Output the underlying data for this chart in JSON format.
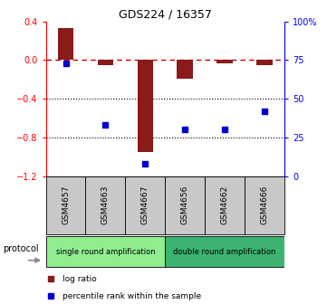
{
  "title": "GDS224 / 16357",
  "samples": [
    "GSM4657",
    "GSM4663",
    "GSM4667",
    "GSM4656",
    "GSM4662",
    "GSM4666"
  ],
  "log_ratio": [
    0.33,
    -0.05,
    -0.95,
    -0.19,
    -0.03,
    -0.05
  ],
  "percentile_rank": [
    73,
    33,
    8,
    30,
    30,
    42
  ],
  "bar_color": "#8B1A1A",
  "dot_color": "#0000CD",
  "dashed_line_color": "#CC0000",
  "ylim_left": [
    -1.2,
    0.4
  ],
  "ylim_right": [
    0,
    100
  ],
  "yticks_left": [
    0.4,
    0.0,
    -0.4,
    -0.8,
    -1.2
  ],
  "yticks_right": [
    100,
    75,
    50,
    25,
    0
  ],
  "protocol_groups": [
    {
      "label": "single round amplification",
      "color": "#90EE90",
      "start": 0,
      "end": 3
    },
    {
      "label": "double round amplification",
      "color": "#3CB371",
      "start": 3,
      "end": 6
    }
  ],
  "legend_items": [
    {
      "label": "log ratio",
      "color": "#8B1A1A"
    },
    {
      "label": "percentile rank within the sample",
      "color": "#0000CD"
    }
  ],
  "protocol_label": "protocol",
  "figsize": [
    3.61,
    3.36
  ],
  "dpi": 100
}
